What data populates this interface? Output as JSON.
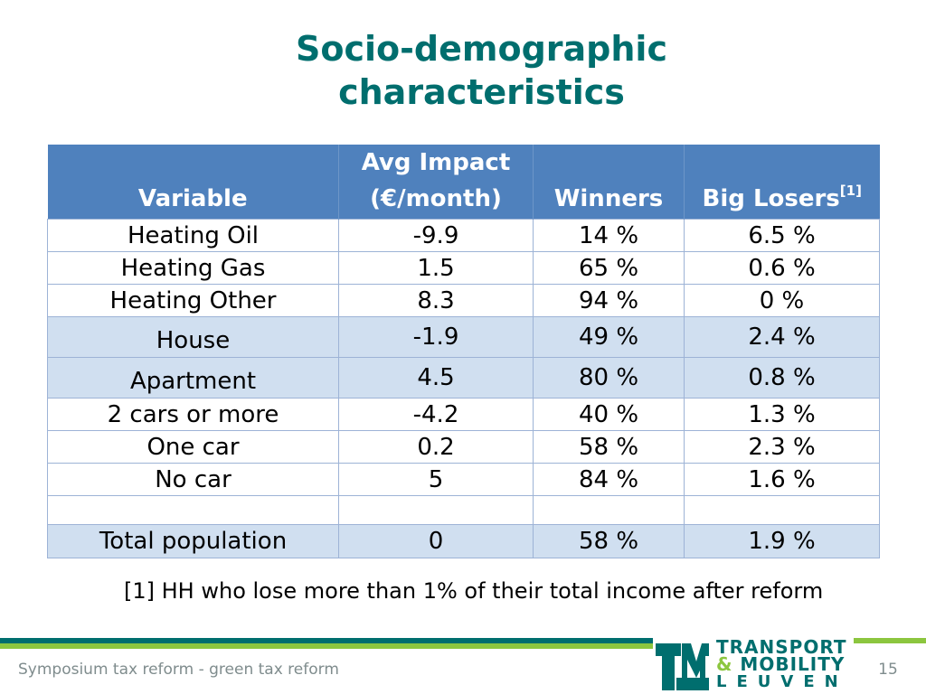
{
  "slide": {
    "title_line1": "Socio-demographic",
    "title_line2": "characteristics"
  },
  "table": {
    "headers": {
      "variable": "Variable",
      "impact_line1": "Avg Impact",
      "impact_line2": "(€/month)",
      "winners": "Winners",
      "losers": "Big Losers",
      "losers_note": "[1]"
    },
    "rows": [
      {
        "variable": "Heating Oil",
        "impact": "-9.9",
        "winners": "14 %",
        "losers": "6.5 %"
      },
      {
        "variable": "Heating Gas",
        "impact": "1.5",
        "winners": "65 %",
        "losers": "0.6 %"
      },
      {
        "variable": "Heating Other",
        "impact": "8.3",
        "winners": "94 %",
        "losers": "0 %"
      },
      {
        "variable": "House",
        "impact": "-1.9",
        "winners": "49 %",
        "losers": "2.4 %"
      },
      {
        "variable": "Apartment",
        "impact": "4.5",
        "winners": "80 %",
        "losers": "0.8 %"
      },
      {
        "variable": "2 cars or more",
        "impact": "-4.2",
        "winners": "40 %",
        "losers": "1.3 %"
      },
      {
        "variable": "One car",
        "impact": "0.2",
        "winners": "58 %",
        "losers": "2.3 %"
      },
      {
        "variable": "No car",
        "impact": "5",
        "winners": "84 %",
        "losers": "1.6 %"
      }
    ],
    "total": {
      "variable": "Total population",
      "impact": "0",
      "winners": "58 %",
      "losers": "1.9 %"
    }
  },
  "footnote": "[1] HH who lose more than 1% of their total income after reform",
  "footer": {
    "text": "Symposium tax reform - green tax reform",
    "page_number": "15"
  },
  "logo": {
    "line1": "TRANSPORT",
    "amp": "&",
    "line2": "MOBILITY",
    "line3": "LEUVEN",
    "colors": {
      "teal": "#006E6E",
      "green": "#8CC63F"
    }
  },
  "colors": {
    "header_blue": "#4F81BD",
    "shaded_row": "#D0DFF0",
    "title_teal": "#006E6E"
  }
}
